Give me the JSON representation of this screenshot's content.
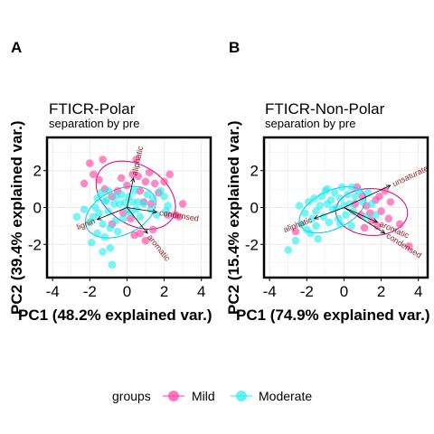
{
  "colors": {
    "mild": "#ff3fa4",
    "moderate": "#22eef0",
    "arrow": "#000000",
    "arrow_label": "#8b1a1a",
    "grid": "#ebebeb"
  },
  "legend": {
    "title": "groups",
    "items": [
      "Mild",
      "Moderate"
    ]
  },
  "chart_data": [
    {
      "type": "scatter",
      "panel": "A",
      "title": "FTICR-Polar",
      "subtitle": "separation by pre",
      "xlabel": "PC1 (48.2% explained var.)",
      "ylabel": "PC2 (39.4% explained var.)",
      "xlim": [
        -4.3,
        4.5
      ],
      "ylim": [
        -3.8,
        3.8
      ],
      "xticks": [
        -4,
        -2,
        0,
        2,
        4
      ],
      "yticks": [
        -2,
        0,
        2
      ],
      "grid": true,
      "series": [
        {
          "name": "Mild",
          "points": [
            [
              -2.3,
              1.3
            ],
            [
              -2.0,
              2.4
            ],
            [
              -1.8,
              1.8
            ],
            [
              -1.5,
              1.5
            ],
            [
              -1.3,
              2.6
            ],
            [
              -1.2,
              1.0
            ],
            [
              -0.8,
              0.6
            ],
            [
              -0.5,
              0.9
            ],
            [
              -0.3,
              1.6
            ],
            [
              0.0,
              1.2
            ],
            [
              0.3,
              1.8
            ],
            [
              0.5,
              2.6
            ],
            [
              0.6,
              1.7
            ],
            [
              0.7,
              0.9
            ],
            [
              1.0,
              1.4
            ],
            [
              1.2,
              1.9
            ],
            [
              1.5,
              1.3
            ],
            [
              1.7,
              0.8
            ],
            [
              2.0,
              1.4
            ],
            [
              2.3,
              1.8
            ],
            [
              2.6,
              -0.4
            ],
            [
              2.8,
              -0.5
            ],
            [
              3.0,
              0.2
            ],
            [
              2.2,
              -0.4
            ],
            [
              0.4,
              -1.5
            ],
            [
              0.7,
              -1.4
            ],
            [
              1.0,
              -1.8
            ],
            [
              1.4,
              -1.2
            ],
            [
              0.2,
              -0.6
            ],
            [
              -0.2,
              -0.3
            ],
            [
              0.9,
              0.3
            ],
            [
              1.3,
              0.2
            ],
            [
              -0.8,
              -0.9
            ]
          ]
        },
        {
          "name": "Moderate",
          "points": [
            [
              -2.7,
              -0.5
            ],
            [
              -2.3,
              -0.1
            ],
            [
              -2.0,
              -0.8
            ],
            [
              -1.9,
              -1.9
            ],
            [
              -1.7,
              0.0
            ],
            [
              -1.6,
              -1.4
            ],
            [
              -1.6,
              0.5
            ],
            [
              -1.5,
              -0.3
            ],
            [
              -1.4,
              0.8
            ],
            [
              -1.3,
              -0.9
            ],
            [
              -1.3,
              -2.4
            ],
            [
              -1.2,
              -1.6
            ],
            [
              -1.2,
              0.3
            ],
            [
              -1.1,
              0.4
            ],
            [
              -1.0,
              -0.2
            ],
            [
              -1.0,
              0.9
            ],
            [
              -0.9,
              -1.1
            ],
            [
              -0.8,
              -3.1
            ],
            [
              -0.7,
              0.2
            ],
            [
              -0.6,
              -0.7
            ],
            [
              -0.6,
              0.6
            ],
            [
              -0.5,
              -1.3
            ],
            [
              -0.4,
              0.2
            ],
            [
              -0.3,
              0.7
            ],
            [
              -0.2,
              -0.6
            ],
            [
              -0.1,
              0.3
            ],
            [
              0.0,
              -0.1
            ],
            [
              0.1,
              0.6
            ],
            [
              0.2,
              -0.3
            ],
            [
              0.3,
              0.3
            ],
            [
              0.4,
              0.9
            ],
            [
              0.5,
              -0.1
            ],
            [
              0.6,
              0.3
            ],
            [
              0.7,
              -0.5
            ],
            [
              0.9,
              0.2
            ],
            [
              1.1,
              0.7
            ],
            [
              1.3,
              -0.1
            ],
            [
              1.4,
              0.5
            ],
            [
              1.6,
              -0.4
            ],
            [
              1.8,
              0.9
            ],
            [
              2.0,
              0.6
            ],
            [
              2.1,
              -0.2
            ],
            [
              2.2,
              0.1
            ],
            [
              -1.8,
              -0.5
            ],
            [
              -0.9,
              -2.2
            ]
          ]
        }
      ],
      "loadings": [
        {
          "label": "aliphatic",
          "x": 0.35,
          "y": 1.6
        },
        {
          "label": "condensed",
          "x": 1.6,
          "y": -0.25
        },
        {
          "label": "aromatic",
          "x": 1.1,
          "y": -1.4
        },
        {
          "label": "lignin",
          "x": -1.6,
          "y": -0.65
        }
      ]
    },
    {
      "type": "scatter",
      "panel": "B",
      "title": "FTICR-Non-Polar",
      "subtitle": "separation by pre",
      "xlabel": "PC1 (74.9% explained var.)",
      "ylabel": "PC2 (15.4% explained var.)",
      "xlim": [
        -4.3,
        4.5
      ],
      "ylim": [
        -3.8,
        3.8
      ],
      "xticks": [
        -4,
        -2,
        0,
        2,
        4
      ],
      "yticks": [
        -2,
        0,
        2
      ],
      "grid": true,
      "series": [
        {
          "name": "Mild",
          "points": [
            [
              -2.6,
              -1.3
            ],
            [
              0.7,
              1.1
            ],
            [
              1.0,
              0.6
            ],
            [
              1.2,
              0.1
            ],
            [
              1.4,
              -0.3
            ],
            [
              1.5,
              -0.7
            ],
            [
              1.7,
              0.4
            ],
            [
              1.8,
              -1.0
            ],
            [
              2.0,
              -0.2
            ],
            [
              2.2,
              0.9
            ],
            [
              2.4,
              -0.6
            ],
            [
              2.5,
              0.3
            ],
            [
              3.0,
              -0.9
            ],
            [
              3.5,
              -2.1
            ],
            [
              1.1,
              -1.1
            ],
            [
              0.9,
              -0.4
            ],
            [
              0.6,
              0.2
            ],
            [
              1.9,
              0.6
            ]
          ]
        },
        {
          "name": "Moderate",
          "points": [
            [
              -3.0,
              -2.3
            ],
            [
              -2.6,
              -1.8
            ],
            [
              -2.3,
              -0.9
            ],
            [
              -2.1,
              -0.3
            ],
            [
              -1.9,
              0.3
            ],
            [
              -1.8,
              -1.4
            ],
            [
              -1.7,
              -0.6
            ],
            [
              -1.6,
              0.5
            ],
            [
              -1.5,
              -0.2
            ],
            [
              -1.4,
              -1.7
            ],
            [
              -1.3,
              0.1
            ],
            [
              -1.2,
              0.6
            ],
            [
              -1.1,
              -0.5
            ],
            [
              -1.0,
              0.9
            ],
            [
              -0.9,
              0.2
            ],
            [
              -0.8,
              -0.8
            ],
            [
              -0.7,
              0.4
            ],
            [
              -0.6,
              -0.1
            ],
            [
              -0.5,
              0.8
            ],
            [
              -0.4,
              0.0
            ],
            [
              -0.3,
              -0.6
            ],
            [
              -0.2,
              0.5
            ],
            [
              -0.1,
              1.1
            ],
            [
              0.0,
              0.1
            ],
            [
              0.1,
              -0.4
            ],
            [
              0.2,
              0.7
            ],
            [
              0.3,
              0.2
            ],
            [
              0.4,
              1.1
            ],
            [
              0.5,
              -0.2
            ],
            [
              0.6,
              0.6
            ],
            [
              0.8,
              0.9
            ],
            [
              1.0,
              0.3
            ],
            [
              1.2,
              -0.5
            ],
            [
              1.3,
              0.8
            ],
            [
              1.5,
              0.2
            ],
            [
              1.7,
              -0.4
            ],
            [
              -2.0,
              -1.2
            ],
            [
              -1.5,
              -1.0
            ],
            [
              -0.9,
              1.0
            ],
            [
              -0.2,
              -0.9
            ],
            [
              0.4,
              -1.0
            ],
            [
              -2.4,
              0.1
            ]
          ]
        }
      ],
      "loadings": [
        {
          "label": "unsaturated",
          "x": 2.5,
          "y": 1.2
        },
        {
          "label": "aromatic",
          "x": 1.8,
          "y": -0.8
        },
        {
          "label": "condensed",
          "x": 2.2,
          "y": -1.4
        },
        {
          "label": "aliphatic",
          "x": -1.6,
          "y": -0.6
        }
      ]
    }
  ]
}
